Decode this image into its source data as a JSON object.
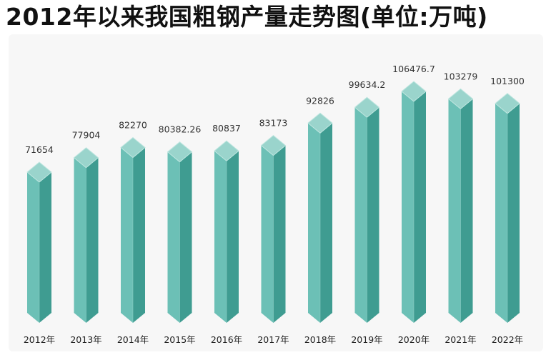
{
  "title": "2012年以来我国粗钢产量走势图(单位:万吨)",
  "colors": {
    "face_front": "#6cc0b6",
    "face_side": "#3f9c91",
    "face_top": "#9ad4cc",
    "face_top_edge": "#bfe6e0",
    "panel_background": "#f7f7f7"
  },
  "chart_data": {
    "type": "bar",
    "title": "2012年以来我国粗钢产量走势图(单位:万吨)",
    "xlabel": "",
    "ylabel": "",
    "categories": [
      "2012年",
      "2013年",
      "2014年",
      "2015年",
      "2016年",
      "2017年",
      "2018年",
      "2019年",
      "2020年",
      "2021年",
      "2022年"
    ],
    "values": [
      71654,
      77904,
      82270,
      80382.26,
      80837,
      83173,
      92826,
      99634.2,
      106476.7,
      103279,
      101300
    ],
    "value_labels": [
      "71654",
      "77904",
      "82270",
      "80382.26",
      "80837",
      "83173",
      "92826",
      "99634.2",
      "106476.7",
      "103279",
      "101300"
    ],
    "grid": false,
    "legend": "none"
  }
}
